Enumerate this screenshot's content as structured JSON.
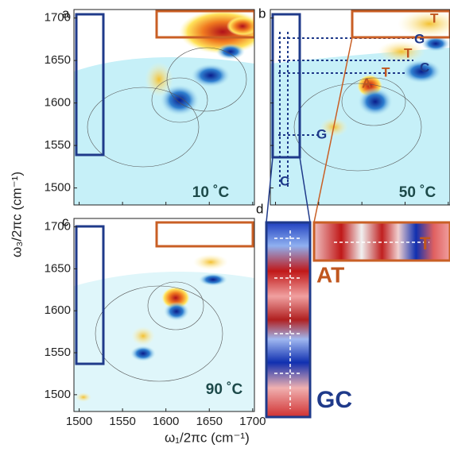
{
  "figure": {
    "axes": {
      "xlabel": "ω₁/2πc (cm⁻¹)",
      "ylabel": "ω₃/2πc (cm⁻¹)",
      "xlim": [
        1494,
        1702
      ],
      "ylim": [
        1480,
        1710
      ],
      "xticks": [
        1500,
        1550,
        1600,
        1650,
        1700
      ],
      "yticks": [
        1500,
        1550,
        1600,
        1650,
        1700
      ]
    },
    "panels": [
      {
        "label": "a",
        "annotation": "10 ˚C"
      },
      {
        "label": "b",
        "annotation": "50 ˚C",
        "peaks": [
          "T",
          "G",
          "T",
          "C",
          "T",
          "A",
          "G",
          "C"
        ]
      },
      {
        "label": "c",
        "annotation": "90 ˚C"
      },
      {
        "label": "d",
        "peaks": [
          "T"
        ],
        "groups": [
          "AT",
          "GC"
        ]
      }
    ]
  }
}
